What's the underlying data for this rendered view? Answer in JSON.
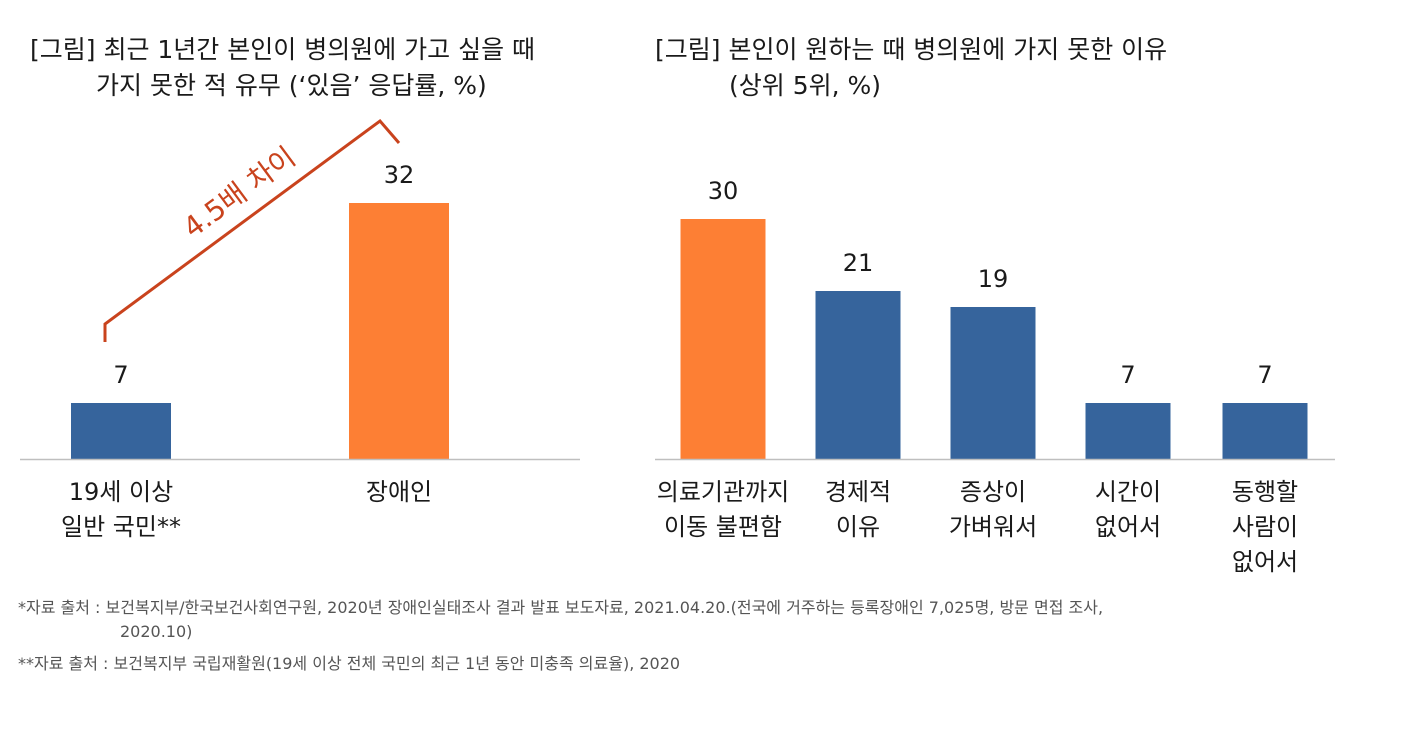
{
  "colors": {
    "blue": "#36649c",
    "orange": "#fd7f34",
    "bracket": "#c9431d",
    "axis": "#bfbfbf"
  },
  "left_chart": {
    "title_line1": "[그림] 최근 1년간 본인이 병의원에 가고 싶을 때",
    "title_line2": "가지 못한 적 유무 (‘있음’ 응답률, %)",
    "annotation": "4.5배 차이"
  },
  "right_chart": {
    "title_line1": "[그림] 본인이 원하는 때 병의원에 가지 못한 이유",
    "title_line2": "(상위 5위, %)"
  },
  "chart_data": [
    {
      "type": "bar",
      "title": "[그림] 최근 1년간 본인이 병의원에 가고 싶을 때 가지 못한 적 유무 (‘있음’ 응답률, %)",
      "categories": [
        [
          "19세 이상",
          "일반 국민**"
        ],
        [
          "장애인"
        ]
      ],
      "values": [
        7,
        32
      ],
      "value_labels": [
        "7",
        "32"
      ],
      "bar_colors": [
        "#36649c",
        "#fd7f34"
      ],
      "ylim": [
        0,
        38
      ],
      "grid": false,
      "annotations": [
        "4.5배 차이"
      ]
    },
    {
      "type": "bar",
      "title": "[그림] 본인이 원하는 때 병의원에 가지 못한 이유 (상위 5위, %)",
      "categories": [
        [
          "의료기관까지",
          "이동 불편함"
        ],
        [
          "경제적",
          "이유"
        ],
        [
          "증상이",
          "가벼워서"
        ],
        [
          "시간이",
          "없어서"
        ],
        [
          "동행할",
          "사람이",
          "없어서"
        ]
      ],
      "values": [
        30,
        21,
        19,
        7,
        7
      ],
      "value_labels": [
        "30",
        "21",
        "19",
        "7",
        "7"
      ],
      "bar_colors": [
        "#fd7f34",
        "#36649c",
        "#36649c",
        "#36649c",
        "#36649c"
      ],
      "ylim": [
        0,
        35
      ],
      "grid": false
    }
  ],
  "footnotes": {
    "line1": "*자료 출처 : 보건복지부/한국보건사회연구원, 2020년 장애인실태조사 결과 발표 보도자료, 2021.04.20.(전국에 거주하는 등록장애인 7,025명, 방문 면접 조사,",
    "line1_cont": "2020.10)",
    "line2": "**자료 출처 : 보건복지부 국립재활원(19세 이상 전체 국민의 최근 1년 동안 미충족 의료율), 2020"
  }
}
